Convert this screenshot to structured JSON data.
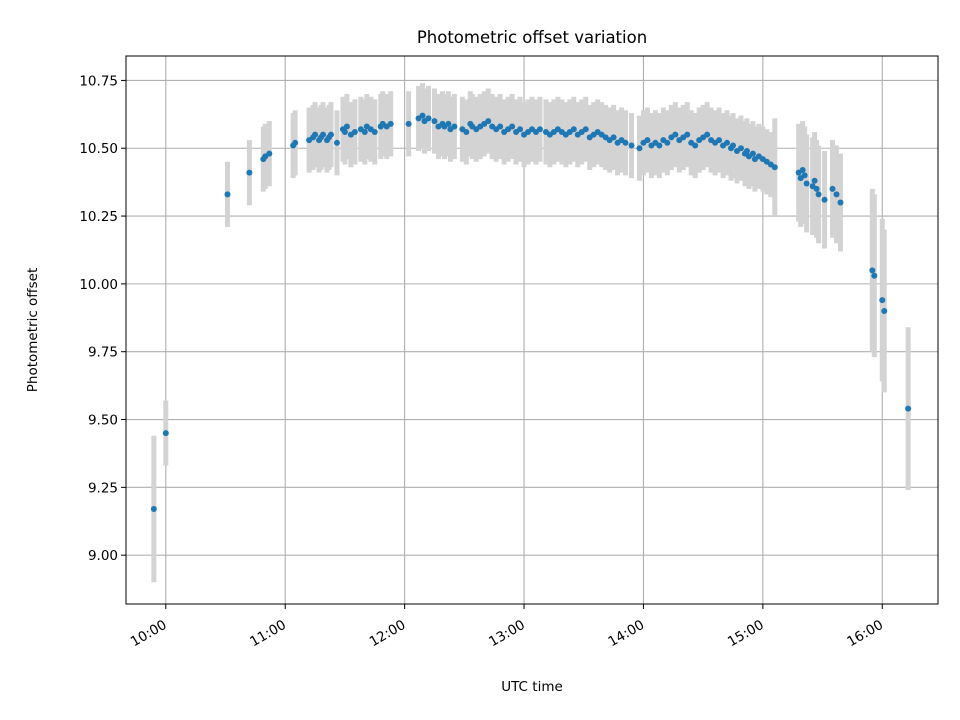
{
  "chart_data": {
    "type": "scatter",
    "title": "Photometric offset variation",
    "xlabel": "UTC time",
    "ylabel": "Photometric offset",
    "grid": true,
    "legend": "none",
    "x_ticks": [
      "10:00",
      "11:00",
      "12:00",
      "13:00",
      "14:00",
      "15:00",
      "16:00"
    ],
    "y_ticks": [
      "9.00",
      "9.25",
      "9.50",
      "9.75",
      "10.00",
      "10.25",
      "10.50",
      "10.75"
    ],
    "xlim": [
      "09:40",
      "16:28"
    ],
    "ylim": [
      8.82,
      10.84
    ],
    "colors": {
      "point": "#1f77b4",
      "errorbar": "#d3d3d3",
      "grid": "#b0b0b0"
    },
    "series": [
      {
        "x": [
          "09:54",
          "10:00",
          "10:31",
          "10:42",
          "10:49",
          "10:50",
          "10:52",
          "11:04",
          "11:05",
          "11:12",
          "11:14",
          "11:15",
          "11:17",
          "11:18",
          "11:19",
          "11:21",
          "11:22",
          "11:23",
          "11:26",
          "11:29",
          "11:30",
          "11:31",
          "11:33",
          "11:35",
          "11:38",
          "11:40",
          "11:41",
          "11:43",
          "11:45",
          "11:48",
          "11:49",
          "11:51",
          "11:53",
          "12:02",
          "12:07",
          "12:09",
          "12:10",
          "12:12",
          "12:15",
          "12:17",
          "12:19",
          "12:20",
          "12:22",
          "12:23",
          "12:25",
          "12:29",
          "12:31",
          "12:33",
          "12:34",
          "12:36",
          "12:38",
          "12:40",
          "12:42",
          "12:44",
          "12:46",
          "12:48",
          "12:50",
          "12:52",
          "12:54",
          "12:56",
          "12:58",
          "13:00",
          "13:02",
          "13:04",
          "13:06",
          "13:08",
          "13:11",
          "13:13",
          "13:15",
          "13:17",
          "13:19",
          "13:21",
          "13:23",
          "13:25",
          "13:27",
          "13:29",
          "13:31",
          "13:33",
          "13:35",
          "13:37",
          "13:39",
          "13:41",
          "13:43",
          "13:45",
          "13:47",
          "13:49",
          "13:51",
          "13:54",
          "13:58",
          "14:00",
          "14:02",
          "14:04",
          "14:06",
          "14:08",
          "14:10",
          "14:12",
          "14:14",
          "14:16",
          "14:18",
          "14:20",
          "14:22",
          "14:24",
          "14:26",
          "14:28",
          "14:30",
          "14:32",
          "14:34",
          "14:36",
          "14:38",
          "14:40",
          "14:42",
          "14:44",
          "14:45",
          "14:47",
          "14:49",
          "14:51",
          "14:52",
          "14:53",
          "14:55",
          "14:56",
          "14:58",
          "15:00",
          "15:02",
          "15:04",
          "15:06",
          "15:18",
          "15:19",
          "15:20",
          "15:21",
          "15:22",
          "15:25",
          "15:26",
          "15:27",
          "15:28",
          "15:31",
          "15:35",
          "15:37",
          "15:39",
          "15:55",
          "15:56",
          "16:00",
          "16:01",
          "16:13"
        ],
        "y": [
          9.17,
          9.45,
          10.33,
          10.41,
          10.46,
          10.47,
          10.48,
          10.51,
          10.52,
          10.53,
          10.54,
          10.55,
          10.53,
          10.54,
          10.55,
          10.53,
          10.54,
          10.55,
          10.52,
          10.57,
          10.56,
          10.58,
          10.55,
          10.56,
          10.57,
          10.56,
          10.58,
          10.57,
          10.56,
          10.58,
          10.59,
          10.58,
          10.59,
          10.59,
          10.61,
          10.62,
          10.6,
          10.61,
          10.6,
          10.58,
          10.59,
          10.58,
          10.59,
          10.57,
          10.58,
          10.57,
          10.56,
          10.59,
          10.58,
          10.57,
          10.58,
          10.59,
          10.6,
          10.58,
          10.57,
          10.58,
          10.56,
          10.57,
          10.58,
          10.56,
          10.57,
          10.55,
          10.56,
          10.57,
          10.56,
          10.57,
          10.56,
          10.55,
          10.56,
          10.57,
          10.56,
          10.55,
          10.56,
          10.57,
          10.55,
          10.56,
          10.57,
          10.54,
          10.55,
          10.56,
          10.55,
          10.54,
          10.53,
          10.54,
          10.52,
          10.53,
          10.52,
          10.51,
          10.5,
          10.52,
          10.53,
          10.51,
          10.52,
          10.51,
          10.53,
          10.52,
          10.54,
          10.55,
          10.53,
          10.54,
          10.55,
          10.52,
          10.51,
          10.53,
          10.54,
          10.55,
          10.53,
          10.52,
          10.53,
          10.51,
          10.52,
          10.5,
          10.51,
          10.49,
          10.5,
          10.48,
          10.49,
          10.47,
          10.48,
          10.46,
          10.47,
          10.46,
          10.45,
          10.44,
          10.43,
          10.41,
          10.39,
          10.42,
          10.4,
          10.37,
          10.36,
          10.38,
          10.35,
          10.33,
          10.31,
          10.35,
          10.33,
          10.3,
          10.05,
          10.03,
          9.94,
          9.9,
          9.54
        ]
      }
    ]
  }
}
